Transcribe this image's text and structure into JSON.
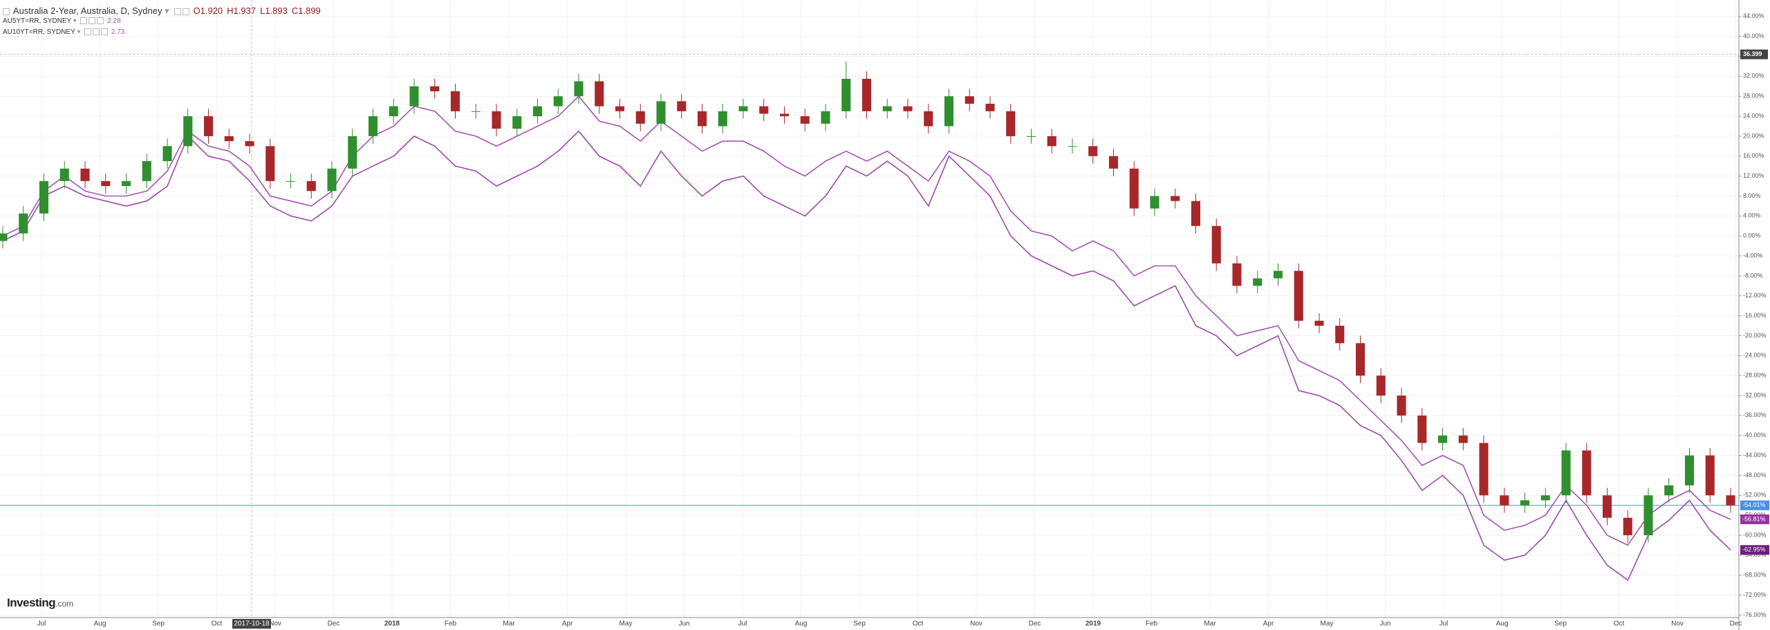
{
  "chart_data": {
    "type": "candlestick",
    "title": "Australia 2-Year, Australia, D, Sydney",
    "ohlc_legend": [
      "O1.920",
      "H1.937",
      "L1.893",
      "C1.899"
    ],
    "candles": {
      "color_up": "#2f8f2f",
      "color_down": "#a8282a",
      "line_color": "#4a8fe6",
      "last_value_label": "-54.01%",
      "open": [
        -1,
        0.5,
        4.5,
        11,
        13.5,
        11,
        10,
        11,
        15,
        18,
        24,
        20,
        19,
        18,
        11,
        11,
        9,
        13.5,
        20,
        24,
        26,
        30,
        29,
        25,
        25,
        21.5,
        24,
        26,
        28,
        31,
        26,
        25,
        22.5,
        27,
        25,
        22,
        25,
        26,
        24.5,
        24,
        22.5,
        25,
        31.5,
        25,
        26,
        25,
        22,
        28,
        26.5,
        25,
        20,
        20,
        18,
        18,
        16,
        13.5,
        5.5,
        8,
        7,
        2,
        -5.5,
        -10,
        -8.5,
        -7,
        -17,
        -18,
        -21.5,
        -28,
        -32,
        -36,
        -41.5,
        -40,
        -41.5,
        -52,
        -54,
        -53,
        -52,
        -43,
        -52,
        -56.5,
        -60,
        -52,
        -50,
        -44,
        -52
      ],
      "high": [
        2,
        6,
        12.5,
        15,
        15,
        12.5,
        12.5,
        16.5,
        19.5,
        25.5,
        25.5,
        21.5,
        20.5,
        19.5,
        12.5,
        12.5,
        15,
        21.5,
        25.5,
        27.5,
        31.5,
        31.5,
        30.5,
        26.5,
        26.5,
        25.5,
        27.5,
        29.5,
        32.5,
        32.5,
        27.5,
        26.5,
        28.5,
        28.5,
        26.5,
        26.5,
        27.5,
        27.5,
        26,
        25.5,
        26.5,
        35,
        33,
        27.5,
        27.5,
        26.5,
        29.5,
        29.5,
        28,
        26.5,
        21.5,
        21.5,
        19.5,
        19.5,
        17.5,
        15,
        9.5,
        9.5,
        8.5,
        3.5,
        -4,
        -7,
        -5.5,
        -5.5,
        -15.5,
        -16.5,
        -20,
        -26.5,
        -30.5,
        -34.5,
        -38.5,
        -38.5,
        -40,
        -50.5,
        -51.5,
        -50.5,
        -41.5,
        -41.5,
        -50.5,
        -55,
        -50.5,
        -48.5,
        -42.5,
        -42.5,
        -50.5
      ],
      "low": [
        -2.5,
        -1,
        3,
        9.5,
        9.5,
        8.5,
        8.5,
        9.5,
        13.5,
        16.5,
        18.5,
        17.5,
        16.5,
        9.5,
        9.5,
        7.5,
        7.5,
        12,
        18.5,
        22.5,
        24.5,
        27.5,
        23.5,
        23.5,
        20,
        20,
        22.5,
        24.5,
        26.5,
        24.5,
        23.5,
        21,
        21,
        23.5,
        20.5,
        20.5,
        23.5,
        23,
        22.5,
        21,
        21,
        23.5,
        23.5,
        23.5,
        23.5,
        20.5,
        20.5,
        25,
        23.5,
        18.5,
        18.5,
        16.5,
        16.5,
        14.5,
        12,
        4,
        4,
        5.5,
        0.5,
        -7,
        -11.5,
        -11.5,
        -10,
        -18.5,
        -19.5,
        -23,
        -29.5,
        -33.5,
        -37.5,
        -43,
        -43,
        -43,
        -53.5,
        -55.5,
        -55.5,
        -54.5,
        -53.5,
        -53.5,
        -58,
        -61.5,
        -61.5,
        -53.5,
        -51.5,
        -53.5,
        -55.51
      ],
      "close": [
        0.5,
        4.5,
        11,
        13.5,
        11,
        10,
        11,
        15,
        18,
        24,
        20,
        19,
        18,
        11,
        11,
        9,
        13.5,
        20,
        24,
        26,
        30,
        29,
        25,
        25,
        21.5,
        24,
        26,
        28,
        31,
        26,
        25,
        22.5,
        27,
        25,
        22,
        25,
        26,
        24.5,
        24,
        22.5,
        25,
        31.5,
        25,
        26,
        25,
        22,
        28,
        26.5,
        25,
        20,
        20,
        18,
        18,
        16,
        13.5,
        5.5,
        8,
        7,
        2,
        -5.5,
        -10,
        -8.5,
        -7,
        -17,
        -18,
        -21.5,
        -28,
        -32,
        -36,
        -41.5,
        -40,
        -41.5,
        -52,
        -54,
        -53,
        -52,
        -43,
        -52,
        -56.5,
        -60,
        -52,
        -50,
        -44,
        -52,
        -54.01
      ]
    },
    "series": [
      {
        "name": "AU5YT=RR, SYDNEY",
        "legend_value": 2.28,
        "color": "#a653b3",
        "label_color": "#97329f",
        "last_value_label": "-56.81%",
        "values": [
          0,
          2,
          9,
          12,
          9,
          8,
          8,
          9,
          13,
          21,
          18,
          17,
          14,
          8,
          7,
          6,
          9,
          16,
          20,
          22,
          26,
          25,
          21,
          20,
          18,
          20,
          22,
          24,
          28,
          23,
          22,
          19,
          23,
          20,
          17,
          19,
          19,
          17,
          14,
          12,
          15,
          17,
          15,
          17,
          14,
          11,
          17,
          15,
          12,
          5,
          1,
          0,
          -3,
          -1,
          -3,
          -8,
          -6,
          -6,
          -12,
          -16,
          -20,
          -19,
          -18,
          -25,
          -27,
          -29,
          -33,
          -37,
          -41,
          -46,
          -44,
          -46,
          -56,
          -59,
          -58,
          -56,
          -50,
          -54,
          -60,
          -62,
          -56,
          -53,
          -51,
          -55,
          -56.81
        ]
      },
      {
        "name": "AU10YT=RR, SYDNEY",
        "legend_value": 2.73,
        "color": "#9e48ab",
        "label_color": "#6a1f7c",
        "last_value_label": "-62.95%",
        "values": [
          -1,
          1,
          8,
          10,
          8,
          7,
          6,
          7,
          10,
          20,
          16,
          15,
          11,
          6,
          4,
          3,
          6,
          12,
          14,
          16,
          20,
          18,
          14,
          13,
          10,
          12,
          14,
          17,
          21,
          16,
          14,
          10,
          17,
          12,
          8,
          11,
          12,
          8,
          6,
          4,
          8,
          14,
          12,
          15,
          12,
          6,
          16,
          12,
          8,
          0,
          -4,
          -6,
          -8,
          -7,
          -9,
          -14,
          -12,
          -10,
          -18,
          -20,
          -24,
          -22,
          -20,
          -31,
          -32,
          -34,
          -38,
          -40,
          -45,
          -51,
          -48,
          -52,
          -62,
          -65,
          -64,
          -60,
          -53,
          -60,
          -66,
          -69,
          -60,
          -57,
          -53,
          -59,
          -62.95
        ]
      }
    ],
    "x_labels": [
      "Jul",
      "Aug",
      "Sep",
      "Oct",
      "Nov",
      "Dec",
      "2018",
      "Feb",
      "Mar",
      "Apr",
      "May",
      "Jun",
      "Jul",
      "Aug",
      "Sep",
      "Oct",
      "Nov",
      "Dec",
      "2019",
      "Feb",
      "Mar",
      "Apr",
      "May",
      "Jun",
      "Jul",
      "Aug",
      "Sep",
      "Oct",
      "Nov",
      "Dec"
    ],
    "crosshair": {
      "x_label": "2017-10-18",
      "y": {
        "value": 36.399,
        "label": "36.399"
      }
    },
    "ylim": [
      -76.5,
      47.3
    ],
    "yticks": [
      {
        "value": -76,
        "label": "-76.00%"
      },
      {
        "value": -72,
        "label": "-72.00%"
      },
      {
        "value": -68,
        "label": "-68.00%"
      },
      {
        "value": -64,
        "label": "-64.00%"
      },
      {
        "value": -60,
        "label": "-60.00%"
      },
      {
        "value": -56,
        "label": "-56.00%"
      },
      {
        "value": -52,
        "label": "-52.00%"
      },
      {
        "value": -48,
        "label": "-48.00%"
      },
      {
        "value": -44,
        "label": "-44.00%"
      },
      {
        "value": -40,
        "label": "-40.00%"
      },
      {
        "value": -36,
        "label": "-36.00%"
      },
      {
        "value": -32,
        "label": "-32.00%"
      },
      {
        "value": -28,
        "label": "-28.00%"
      },
      {
        "value": -24,
        "label": "-24.00%"
      },
      {
        "value": -20,
        "label": "-20.00%"
      },
      {
        "value": -16,
        "label": "-16.00%"
      },
      {
        "value": -12,
        "label": "-12.00%"
      },
      {
        "value": -8,
        "label": "-8.00%"
      },
      {
        "value": -4,
        "label": "-4.00%"
      },
      {
        "value": 0,
        "label": "0.00%"
      },
      {
        "value": 4,
        "label": "4.00%"
      },
      {
        "value": 8,
        "label": "8.00%"
      },
      {
        "value": 12,
        "label": "12.00%"
      },
      {
        "value": 16,
        "label": "16.00%"
      },
      {
        "value": 20,
        "label": "20.00%"
      },
      {
        "value": 24,
        "label": "24.00%"
      },
      {
        "value": 28,
        "label": "28.00%"
      },
      {
        "value": 32,
        "label": "32.00%"
      },
      {
        "value": 36,
        "label": "36.00%"
      },
      {
        "value": 40,
        "label": "40.00%"
      },
      {
        "value": 44,
        "label": "44.00%"
      }
    ],
    "grid": true,
    "logo": {
      "brand": "Investing",
      "suffix": ".com"
    }
  }
}
